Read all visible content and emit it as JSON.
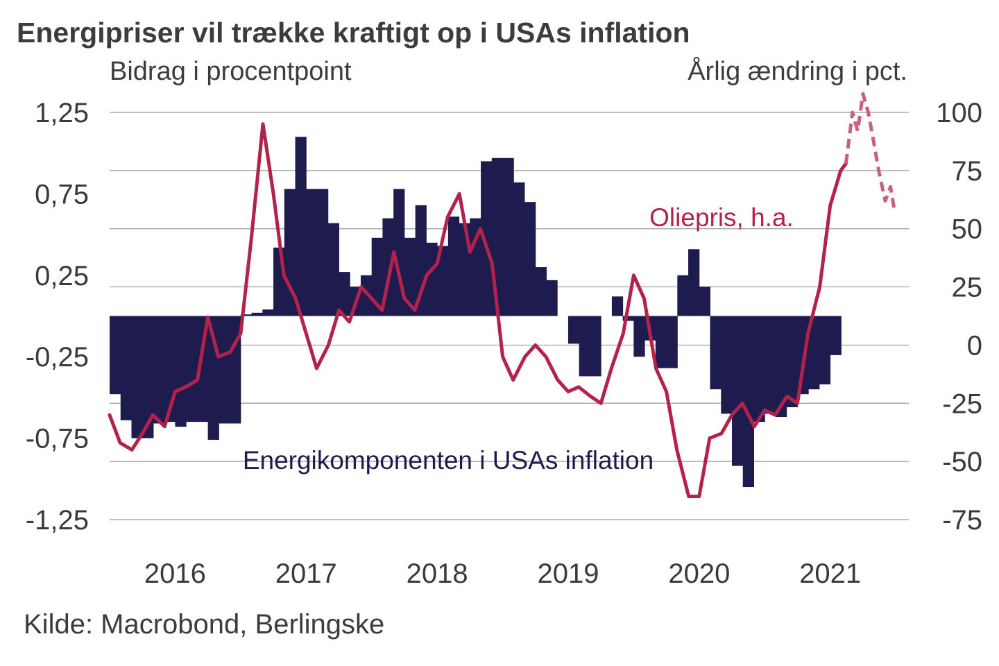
{
  "title": "Energipriser vil trække kraftigt op i USAs inflation",
  "left_axis_label": "Bidrag i procentpoint",
  "right_axis_label": "Årlig ændring i pct.",
  "source": "Kilde: Macrobond, Berlingske",
  "colors": {
    "energy": "#1e1b4f",
    "oil": "#b3224a",
    "oil_forecast": "#c9607c",
    "grid": "#9a9a9a"
  },
  "chart_data": {
    "type": "bar+line",
    "title": "Energipriser vil trække kraftigt op i USAs inflation",
    "x_range": [
      2015.5,
      2021.6
    ],
    "left_axis": {
      "label": "Bidrag i procentpoint",
      "range": [
        -1.25,
        1.25
      ],
      "ticks": [
        {
          "value": 1.25,
          "label": "1,25"
        },
        {
          "value": 0.75,
          "label": "0,75"
        },
        {
          "value": 0.25,
          "label": "0,25"
        },
        {
          "value": -0.25,
          "label": "-0,25"
        },
        {
          "value": -0.75,
          "label": "-0,75"
        },
        {
          "value": -1.25,
          "label": "-1,25"
        }
      ]
    },
    "right_axis": {
      "label": "Årlig ændring i pct.",
      "range": [
        -75,
        100
      ],
      "ticks": [
        {
          "value": 100,
          "label": "100"
        },
        {
          "value": 75,
          "label": "75"
        },
        {
          "value": 50,
          "label": "50"
        },
        {
          "value": 25,
          "label": "25"
        },
        {
          "value": 0,
          "label": "0"
        },
        {
          "value": -25,
          "label": "-25"
        },
        {
          "value": -50,
          "label": "-50"
        },
        {
          "value": -75,
          "label": "-75"
        }
      ]
    },
    "x_ticks": [
      {
        "value": 2016,
        "label": "2016"
      },
      {
        "value": 2017,
        "label": "2017"
      },
      {
        "value": 2018,
        "label": "2018"
      },
      {
        "value": 2019,
        "label": "2019"
      },
      {
        "value": 2020,
        "label": "2020"
      },
      {
        "value": 2021,
        "label": "2021"
      }
    ],
    "series": [
      {
        "name": "Energikomponenten i USAs inflation",
        "axis": "left",
        "type": "bar",
        "start": 2015.5,
        "step": 0.08333,
        "values": [
          -0.48,
          -0.64,
          -0.75,
          -0.75,
          -0.66,
          -0.65,
          -0.68,
          -0.65,
          -0.65,
          -0.76,
          -0.66,
          -0.66,
          0.01,
          0.02,
          0.04,
          0.42,
          0.78,
          1.1,
          0.78,
          0.78,
          0.57,
          0.27,
          0.18,
          0.25,
          0.48,
          0.6,
          0.78,
          0.48,
          0.68,
          0.45,
          0.43,
          0.61,
          0.57,
          0.6,
          0.95,
          0.97,
          0.97,
          0.82,
          0.7,
          0.3,
          0.22,
          0.0,
          -0.17,
          -0.37,
          -0.37,
          0.0,
          0.12,
          -0.03,
          -0.25,
          -0.15,
          -0.32,
          -0.32,
          0.25,
          0.41,
          0.18,
          -0.45,
          -0.6,
          -0.92,
          -1.05,
          -0.65,
          -0.6,
          -0.62,
          -0.56,
          -0.48,
          -0.45,
          -0.42,
          -0.24
        ]
      },
      {
        "name": "Oliepris, h.a.",
        "axis": "right",
        "type": "line",
        "x": [
          2015.5,
          2015.58,
          2015.67,
          2015.75,
          2015.83,
          2015.92,
          2016.0,
          2016.08,
          2016.17,
          2016.25,
          2016.33,
          2016.42,
          2016.5,
          2016.58,
          2016.67,
          2016.75,
          2016.83,
          2016.92,
          2017.0,
          2017.08,
          2017.17,
          2017.25,
          2017.33,
          2017.42,
          2017.5,
          2017.58,
          2017.67,
          2017.75,
          2017.83,
          2017.92,
          2018.0,
          2018.08,
          2018.17,
          2018.25,
          2018.33,
          2018.42,
          2018.5,
          2018.58,
          2018.67,
          2018.75,
          2018.83,
          2018.92,
          2019.0,
          2019.08,
          2019.17,
          2019.25,
          2019.33,
          2019.42,
          2019.5,
          2019.58,
          2019.67,
          2019.75,
          2019.83,
          2019.92,
          2020.0,
          2020.08,
          2020.17,
          2020.25,
          2020.33,
          2020.42,
          2020.5,
          2020.58,
          2020.67,
          2020.75,
          2020.83,
          2020.92,
          2021.0,
          2021.08,
          2021.12
        ],
        "values": [
          -30,
          -42,
          -45,
          -38,
          -30,
          -35,
          -20,
          -18,
          -15,
          12,
          -5,
          -3,
          5,
          45,
          95,
          65,
          30,
          20,
          5,
          -10,
          0,
          15,
          10,
          25,
          20,
          15,
          40,
          20,
          15,
          30,
          35,
          55,
          65,
          40,
          50,
          35,
          -5,
          -15,
          -5,
          0,
          -5,
          -15,
          -20,
          -18,
          -22,
          -25,
          -10,
          5,
          30,
          20,
          -10,
          -20,
          -45,
          -65,
          -65,
          -40,
          -38,
          -30,
          -25,
          -35,
          -28,
          -30,
          -22,
          -25,
          5,
          25,
          60,
          75,
          78
        ]
      },
      {
        "name": "Oliepris prognose",
        "axis": "right",
        "type": "line",
        "style": "dashed",
        "x": [
          2021.12,
          2021.17,
          2021.21,
          2021.25,
          2021.29,
          2021.33,
          2021.37,
          2021.42,
          2021.46,
          2021.49
        ],
        "values": [
          78,
          100,
          92,
          108,
          100,
          88,
          75,
          62,
          68,
          58
        ]
      }
    ],
    "annotations": [
      {
        "text": "Oliepris, h.a.",
        "series": "Oliepris, h.a."
      },
      {
        "text": "Energikomponenten i USAs inflation",
        "series": "Energikomponenten i USAs inflation"
      }
    ]
  }
}
